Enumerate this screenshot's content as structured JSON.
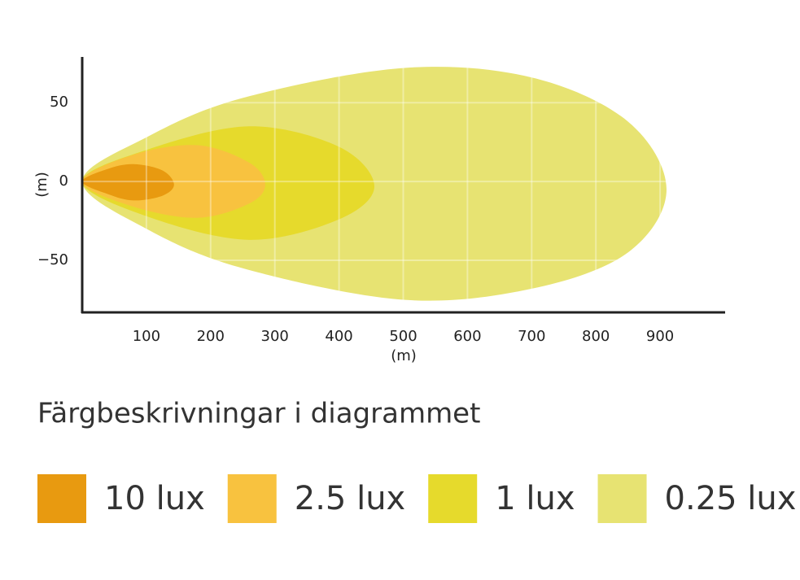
{
  "chart_data": {
    "type": "area",
    "x_label": "(m)",
    "y_label": "(m)",
    "legend_title": "Färgbeskrivningar i diagrammet",
    "xlim": [
      0,
      1000
    ],
    "ylim": [
      -83,
      79
    ],
    "xticks": [
      100,
      200,
      300,
      400,
      500,
      600,
      700,
      800,
      900
    ],
    "yticks": [
      {
        "value": -50,
        "label": "−50"
      },
      0,
      50
    ],
    "grid": true,
    "series": [
      {
        "name": "0.25 lux",
        "color": "#e7e372",
        "x": [
          0,
          100,
          250,
          500,
          700,
          850,
          910
        ],
        "upper": [
          0,
          28,
          53,
          72,
          66,
          38,
          -5
        ],
        "lower": [
          0,
          -30,
          -55,
          -75,
          -68,
          -45,
          -5
        ]
      },
      {
        "name": "1 lux",
        "color": "#e6da2c",
        "x": [
          0,
          100,
          260,
          400,
          455
        ],
        "upper": [
          0,
          20,
          35,
          22,
          -3
        ],
        "lower": [
          0,
          -22,
          -37,
          -24,
          -3
        ]
      },
      {
        "name": "2.5 lux",
        "color": "#f8c23f",
        "x": [
          0,
          80,
          180,
          260,
          285
        ],
        "upper": [
          0,
          17,
          23,
          12,
          -2
        ],
        "lower": [
          0,
          -16,
          -23,
          -14,
          -2
        ]
      },
      {
        "name": "10 lux",
        "color": "#e89a10",
        "x": [
          0,
          40,
          80,
          125,
          143
        ],
        "upper": [
          0,
          8,
          11,
          7,
          -2
        ],
        "lower": [
          0,
          -8,
          -12,
          -9,
          -2
        ]
      }
    ]
  }
}
